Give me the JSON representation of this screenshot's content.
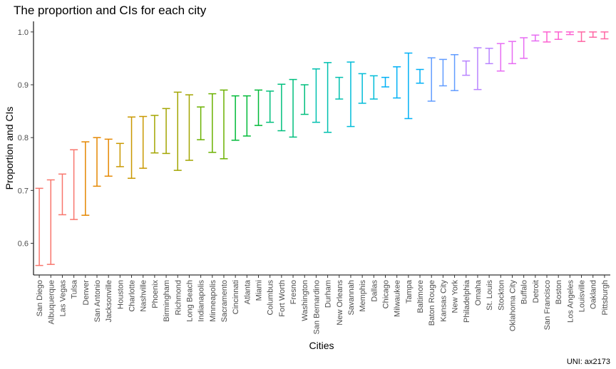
{
  "chart_data": {
    "type": "errorbar",
    "title": "The proportion and CIs for each city",
    "xlabel": "Cities",
    "ylabel": "Proportion and CIs",
    "caption": "UNI: ax2173",
    "ylim": [
      0.54,
      1.02
    ],
    "yticks": [
      "0.6",
      "0.7",
      "0.8",
      "0.9",
      "1.0"
    ],
    "grid": false,
    "legend": "none",
    "palette": [
      "#F8766D",
      "#E58700",
      "#C99800",
      "#A3A500",
      "#6BB100",
      "#00BA38",
      "#00BF7D",
      "#00C0AF",
      "#00BCD8",
      "#00B0F6",
      "#619CFF",
      "#B983FF",
      "#E76BF3",
      "#FD61D1",
      "#FF67A4"
    ],
    "categories": [
      "San Diego",
      "Albuquerque",
      "Las Vegas",
      "Tulsa",
      "Denver",
      "San Antonio",
      "Jacksonville",
      "Houston",
      "Charlotte",
      "Nashville",
      "Phoenix",
      "Birmingham",
      "Richmond",
      "Long Beach",
      "Indianapolis",
      "Minneapolis",
      "Sacramento",
      "Cincinnati",
      "Atlanta",
      "Miami",
      "Columbus",
      "Fort Worth",
      "Fresno",
      "Washington",
      "San Bernardino",
      "Durham",
      "New Orleans",
      "Savannah",
      "Memphis",
      "Dallas",
      "Chicago",
      "Milwaukee",
      "Tampa",
      "Baltimore",
      "Baton Rouge",
      "Kansas City",
      "New York",
      "Philadelphia",
      "Omaha",
      "St. Louis",
      "Stockton",
      "Oklahoma City",
      "Buffalo",
      "Detroit",
      "San Francisco",
      "Boston",
      "Los Angeles",
      "Louisville",
      "Oakland",
      "Pittsburgh"
    ],
    "lower": [
      0.558,
      0.56,
      0.654,
      0.645,
      0.653,
      0.708,
      0.727,
      0.745,
      0.723,
      0.742,
      0.771,
      0.77,
      0.738,
      0.757,
      0.796,
      0.772,
      0.76,
      0.795,
      0.803,
      0.823,
      0.829,
      0.813,
      0.801,
      0.844,
      0.829,
      0.81,
      0.873,
      0.821,
      0.865,
      0.873,
      0.896,
      0.875,
      0.836,
      0.903,
      0.869,
      0.898,
      0.889,
      0.918,
      0.891,
      0.94,
      0.926,
      0.94,
      0.95,
      0.983,
      0.981,
      0.986,
      0.995,
      0.982,
      0.99,
      0.987
    ],
    "upper": [
      0.704,
      0.72,
      0.731,
      0.777,
      0.792,
      0.8,
      0.797,
      0.789,
      0.839,
      0.84,
      0.842,
      0.855,
      0.886,
      0.881,
      0.858,
      0.883,
      0.89,
      0.879,
      0.879,
      0.89,
      0.888,
      0.901,
      0.91,
      0.9,
      0.93,
      0.942,
      0.914,
      0.943,
      0.921,
      0.917,
      0.914,
      0.934,
      0.96,
      0.929,
      0.951,
      0.948,
      0.957,
      0.945,
      0.97,
      0.969,
      0.978,
      0.982,
      0.989,
      0.994,
      1.0,
      1.0,
      1.0,
      1.0,
      1.0,
      1.0
    ]
  }
}
